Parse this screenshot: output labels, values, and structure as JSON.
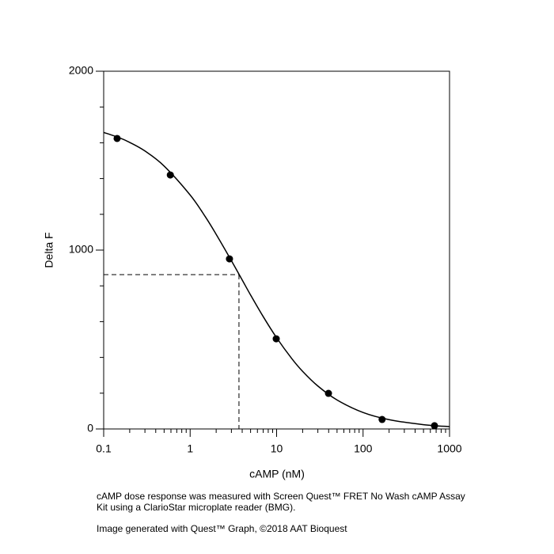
{
  "chart_data": {
    "type": "scatter",
    "x_label": "cAMP (nM)",
    "y_label": "Delta F",
    "xscale": "log",
    "xlim": [
      0.1,
      1000
    ],
    "xticks": [
      0.1,
      1,
      10,
      100,
      1000
    ],
    "xminorticks": [
      0.2,
      0.3,
      0.4,
      0.5,
      0.6,
      0.7,
      0.8,
      0.9,
      2,
      3,
      4,
      5,
      6,
      7,
      8,
      9,
      20,
      30,
      40,
      50,
      60,
      70,
      80,
      90,
      200,
      300,
      400,
      500,
      600,
      700,
      800,
      900
    ],
    "ylim": [
      0,
      2000
    ],
    "yticks": [
      0,
      1000,
      2000
    ],
    "yminorticks": [
      200,
      400,
      600,
      800,
      1200,
      1400,
      1600,
      1800
    ],
    "grid": false,
    "series": [
      {
        "type": "scatter",
        "color": "#000000",
        "x": [
          0.143,
          0.59,
          2.85,
          9.9,
          39.8,
          166,
          670
        ],
        "values": [
          1624,
          1420,
          951,
          504,
          199,
          53,
          18
        ]
      },
      {
        "type": "line",
        "color": "#000000",
        "x": [
          0.1,
          0.15,
          0.2,
          0.3,
          0.5,
          1,
          1.5,
          2,
          3,
          4,
          5,
          7,
          10,
          15,
          20,
          30,
          50,
          100,
          200,
          500,
          1000
        ],
        "values": [
          1658,
          1629,
          1602,
          1554,
          1470,
          1308,
          1186,
          1088,
          941,
          833,
          749,
          628,
          510,
          393,
          322,
          240,
          162,
          92,
          52,
          24,
          13
        ]
      }
    ],
    "reference": {
      "x": 3.67,
      "y": 863
    }
  },
  "caption": [
    "cAMP dose response was measured with Screen Quest™ FRET No Wash cAMP Assay",
    "Kit using a ClarioStar microplate reader (BMG).",
    "Image generated with Quest™ Graph, ©2018 AAT Bioquest"
  ]
}
